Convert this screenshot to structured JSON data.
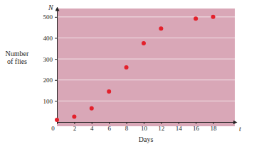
{
  "chart_data": {
    "type": "scatter",
    "xlabel": "Days",
    "ylabel": "Number of flies",
    "x_symbol": "t",
    "y_symbol": "N",
    "x": [
      0,
      2,
      4,
      6,
      8,
      10,
      12,
      16,
      18
    ],
    "values": [
      10,
      25,
      65,
      145,
      260,
      375,
      445,
      492,
      500
    ],
    "color": "#e3202b",
    "marker": "circle",
    "xlim": [
      0,
      20.5
    ],
    "ylim": [
      0,
      540
    ],
    "xticks": [
      0,
      2,
      4,
      6,
      8,
      10,
      12,
      14,
      16,
      18
    ],
    "yticks": [
      100,
      200,
      300,
      400,
      500
    ],
    "grid": true
  }
}
